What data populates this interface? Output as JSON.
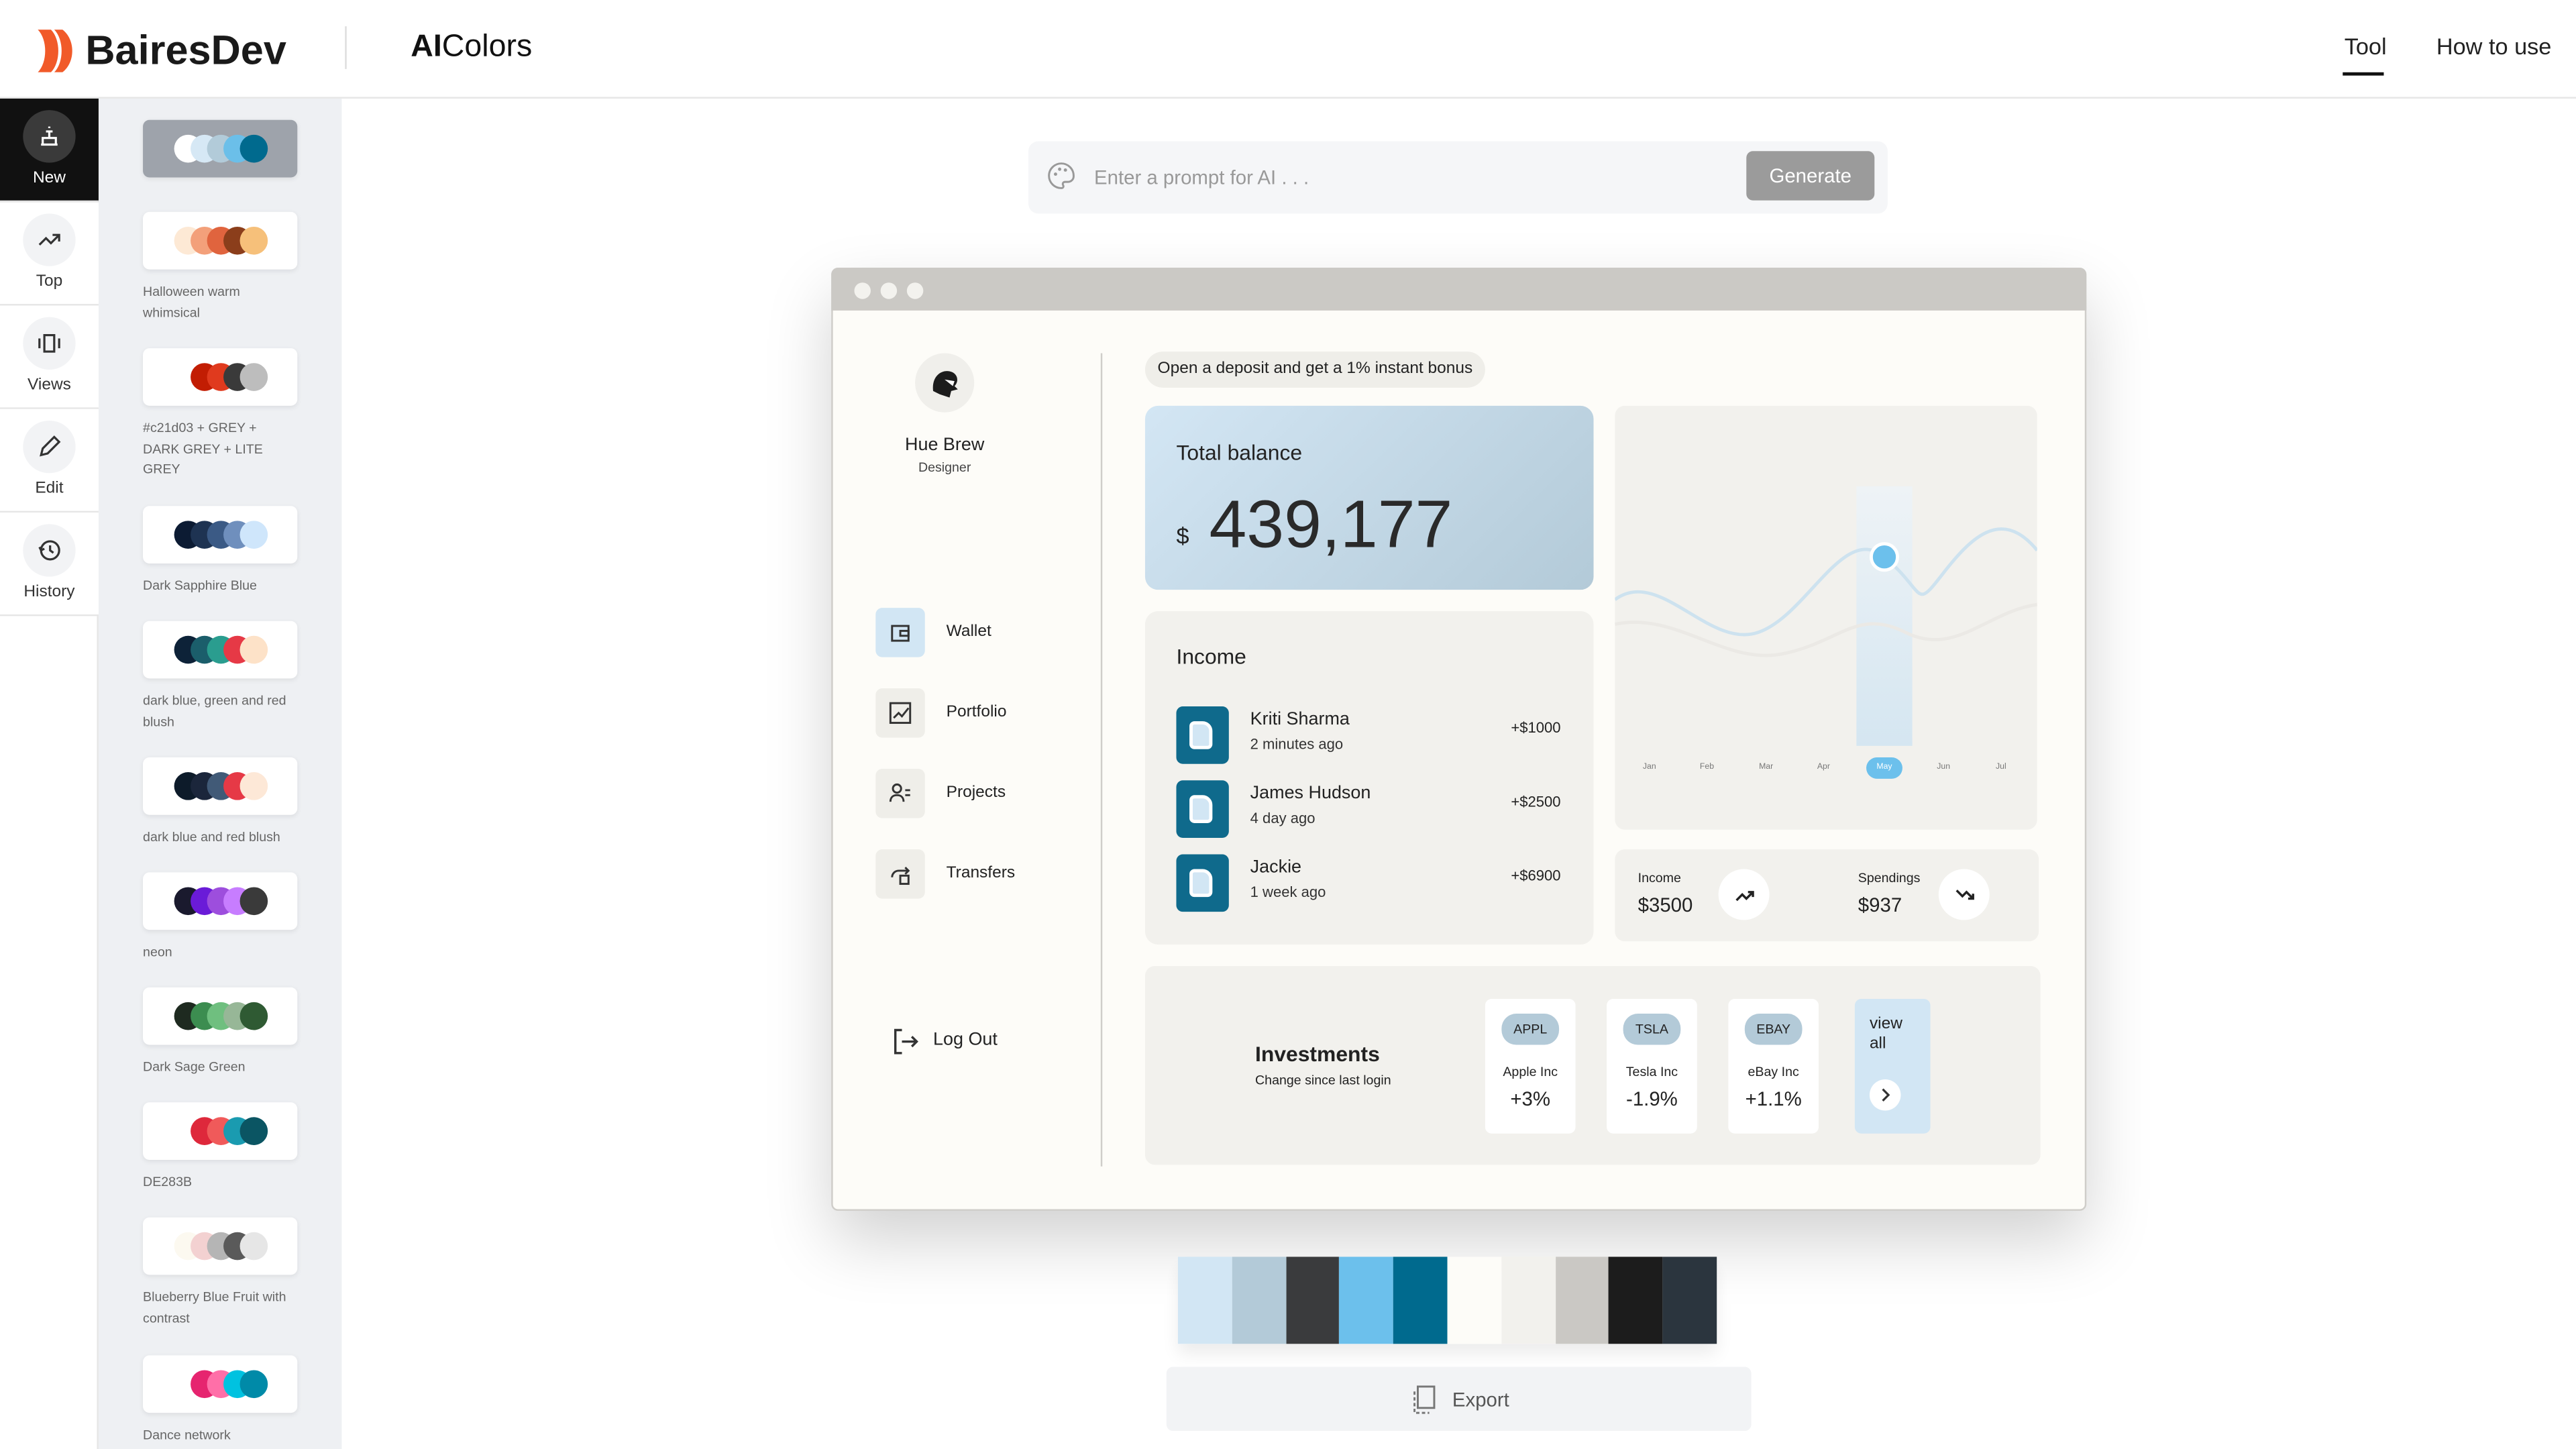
{
  "header": {
    "brand": "BairesDev",
    "app_name_bold": "AI",
    "app_name": "Colors",
    "nav": [
      "Tool",
      "How to use"
    ]
  },
  "sidebar": {
    "items": [
      "New",
      "Top",
      "Views",
      "Edit",
      "History"
    ]
  },
  "palettes": [
    {
      "colors": [
        "#ffffff",
        "#d6e8f5",
        "#b2cbd9",
        "#6bbfe9",
        "#006a8e"
      ]
    },
    {
      "name": "Halloween warm whimsical",
      "colors": [
        "#fde9d5",
        "#f3a07a",
        "#e0643e",
        "#8b3e1b",
        "#f6c07a"
      ]
    },
    {
      "name": "#c21d03 + GREY + DARK GREY + LITE GREY",
      "colors": [
        "#ffffff",
        "#c21d03",
        "#e03a1e",
        "#3a3a3a",
        "#bdbdbd"
      ]
    },
    {
      "name": "Dark Sapphire Blue",
      "colors": [
        "#0c1b33",
        "#1e3352",
        "#3b5a85",
        "#6f8fbd",
        "#cfe6fb"
      ]
    },
    {
      "name": "dark blue, green and red blush",
      "colors": [
        "#0d2238",
        "#1b5e6b",
        "#2a9d8f",
        "#e63946",
        "#fde2c8"
      ]
    },
    {
      "name": "dark blue and red blush",
      "colors": [
        "#0d1b2a",
        "#1b263b",
        "#415a77",
        "#e63946",
        "#fde8d7"
      ]
    },
    {
      "name": "neon",
      "colors": [
        "#1a1a2e",
        "#6a1bd8",
        "#9d4edd",
        "#c77dff",
        "#3a3a3a"
      ]
    },
    {
      "name": "Dark Sage Green",
      "colors": [
        "#1e2a20",
        "#3c8d50",
        "#6fbf7f",
        "#97b797",
        "#2f5a33"
      ]
    },
    {
      "name": "DE283B",
      "colors": [
        "#ffffff",
        "#de283b",
        "#f05a5a",
        "#1a9bb0",
        "#0b5563"
      ]
    },
    {
      "name": "Blueberry Blue Fruit with contrast",
      "colors": [
        "#fcf9f0",
        "#f3d1d1",
        "#b5b5b5",
        "#5a5a5a",
        "#e6e6e6"
      ]
    },
    {
      "name": "Dance network",
      "colors": [
        "#ffffff",
        "#e6246f",
        "#ff6fa8",
        "#00c2e0",
        "#008aa8"
      ]
    }
  ],
  "prompt": {
    "placeholder": "Enter a prompt for AI . . .",
    "button": "Generate"
  },
  "preview": {
    "banner": "Open a deposit and get a 1% instant bonus",
    "profile": {
      "name": "Hue Brew",
      "role": "Designer"
    },
    "menu": [
      "Wallet",
      "Portfolio",
      "Projects",
      "Transfers"
    ],
    "logout": "Log Out",
    "balance": {
      "label": "Total balance",
      "currency": "$",
      "amount": "439,177"
    },
    "income": {
      "title": "Income",
      "rows": [
        {
          "name": "Kriti Sharma",
          "time": "2 minutes ago",
          "amount": "+$1000"
        },
        {
          "name": "James Hudson",
          "time": "4 day ago",
          "amount": "+$2500"
        },
        {
          "name": "Jackie",
          "time": "1 week ago",
          "amount": "+$6900"
        }
      ]
    },
    "chart": {
      "months": [
        "Jan",
        "Feb",
        "Mar",
        "Apr",
        "May",
        "Jun",
        "Jul"
      ]
    },
    "stats": [
      {
        "label": "Income",
        "value": "$3500"
      },
      {
        "label": "Spendings",
        "value": "$937"
      }
    ],
    "investments": {
      "title": "Investments",
      "subtitle": "Change since last login",
      "stocks": [
        {
          "ticker": "APPL",
          "name": "Apple Inc",
          "change": "+3%"
        },
        {
          "ticker": "TSLA",
          "name": "Tesla Inc",
          "change": "-1.9%"
        },
        {
          "ticker": "EBAY",
          "name": "eBay Inc",
          "change": "+1.1%"
        }
      ],
      "more": "view all"
    }
  },
  "palette": [
    "#d2e6f4",
    "#b3cad8",
    "#3a3b3d",
    "#6cc0ec",
    "#006a8e",
    "#fdfcf8",
    "#f2f1ed",
    "#cac8c4",
    "#1c1c1c",
    "#2b353e"
  ],
  "export": "Export"
}
